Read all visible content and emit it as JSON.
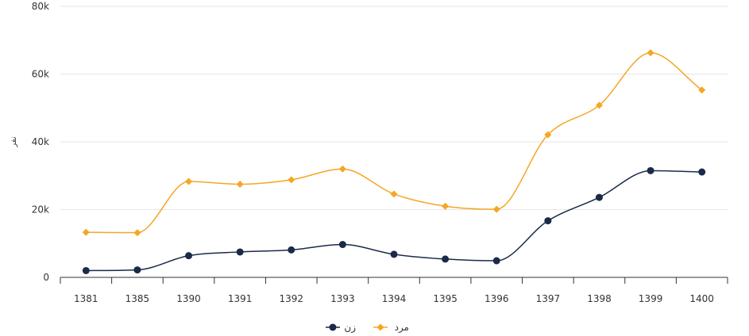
{
  "chart_data": {
    "type": "line",
    "categories": [
      "1381",
      "1385",
      "1390",
      "1391",
      "1392",
      "1393",
      "1394",
      "1395",
      "1396",
      "1397",
      "1398",
      "1399",
      "1400"
    ],
    "ylim": [
      0,
      80000
    ],
    "yticks": [
      0,
      20000,
      40000,
      60000,
      80000
    ],
    "ytick_labels": [
      "0",
      "20k",
      "40k",
      "60k",
      "80k"
    ],
    "ylabel": "نفر",
    "grid": true,
    "legend_position": "bottom-center",
    "series": [
      {
        "name": "زن",
        "color": "#1b2a49",
        "marker": "circle",
        "values": [
          2000,
          2200,
          6400,
          7500,
          8100,
          9700,
          6800,
          5400,
          4900,
          16700,
          23600,
          31500,
          31100
        ]
      },
      {
        "name": "مرد",
        "color": "#f5a623",
        "marker": "diamond",
        "values": [
          13300,
          13200,
          28300,
          27500,
          28800,
          32000,
          24600,
          21000,
          20100,
          42100,
          50800,
          66300,
          55300
        ]
      }
    ]
  }
}
